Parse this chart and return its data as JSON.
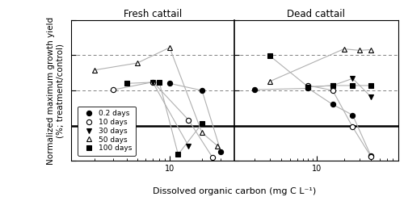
{
  "title_left": "Fresh cattail",
  "title_right": "Dead cattail",
  "xlabel": "Dissolved organic carbon (mg C L⁻¹)",
  "ylabel": "Normalized maximum growth yield\n(%; treatment/control)",
  "ylim": [
    0,
    200
  ],
  "yticks": [
    0,
    50,
    100,
    150,
    200
  ],
  "ec50_line": 50,
  "dashed_lines": [
    100,
    150
  ],
  "legend_labels": [
    "0.2 days",
    "10 days",
    "30 days",
    "50 days",
    "100 days"
  ],
  "fresh": {
    "xlim": [
      1.2,
      40
    ],
    "days_0p2": {
      "x": [
        5,
        10,
        20,
        30
      ],
      "y": [
        null,
        110,
        100,
        13
      ]
    },
    "days_10": {
      "x": [
        3,
        7,
        15,
        25
      ],
      "y": [
        101,
        112,
        58,
        5
      ]
    },
    "days_30": {
      "x": [
        7,
        15
      ],
      "y": [
        111,
        21
      ]
    },
    "days_50": {
      "x": [
        2,
        5,
        10,
        20,
        28
      ],
      "y": [
        129,
        139,
        161,
        40,
        21
      ]
    },
    "days_100": {
      "x": [
        4,
        8,
        12,
        20
      ],
      "y": [
        110,
        112,
        9,
        53
      ]
    }
  },
  "dead": {
    "xlim": [
      1.2,
      80
    ],
    "days_0p2": {
      "x": [
        2,
        8,
        15,
        25,
        40
      ],
      "y": [
        101,
        103,
        80,
        65,
        7
      ]
    },
    "days_10": {
      "x": [
        8,
        15,
        25,
        40
      ],
      "y": [
        107,
        100,
        48,
        6
      ]
    },
    "days_30": {
      "x": [
        8,
        15,
        25,
        40
      ],
      "y": [
        105,
        107,
        117,
        91
      ]
    },
    "days_50": {
      "x": [
        3,
        20,
        30,
        40
      ],
      "y": [
        113,
        159,
        157,
        158
      ]
    },
    "days_100": {
      "x": [
        3,
        8,
        15,
        25,
        40
      ],
      "y": [
        149,
        105,
        107,
        107,
        107
      ]
    }
  },
  "line_color": "#b0b0b0",
  "bg_color": "#ffffff"
}
